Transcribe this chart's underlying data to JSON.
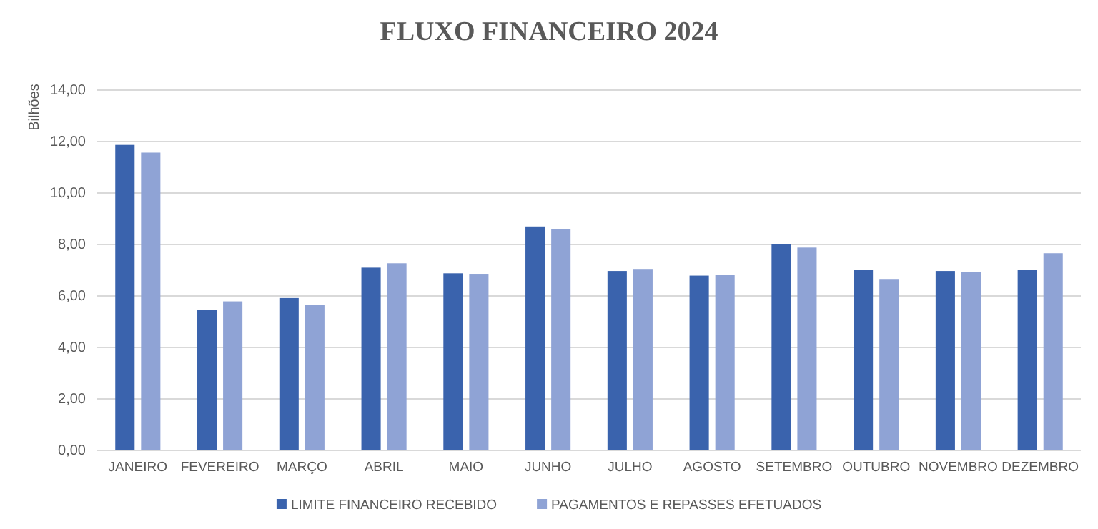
{
  "chart_data": {
    "type": "bar",
    "title": "FLUXO FINANCEIRO 2024",
    "ylabel": "Bilhões",
    "categories": [
      "JANEIRO",
      "FEVEREIRO",
      "MARÇO",
      "ABRIL",
      "MAIO",
      "JUNHO",
      "JULHO",
      "AGOSTO",
      "SETEMBRO",
      "OUTUBRO",
      "NOVEMBRO",
      "DEZEMBRO"
    ],
    "series": [
      {
        "name": "LIMITE FINANCEIRO RECEBIDO",
        "color": "#3a63ad",
        "values": [
          11.87,
          5.47,
          5.92,
          7.1,
          6.88,
          8.7,
          6.97,
          6.79,
          8.01,
          7.01,
          6.97,
          7.01
        ]
      },
      {
        "name": "PAGAMENTOS E REPASSES EFETUADOS",
        "color": "#8fa3d5",
        "values": [
          11.57,
          5.79,
          5.64,
          7.27,
          6.86,
          8.59,
          7.05,
          6.82,
          7.88,
          6.66,
          6.92,
          7.66
        ]
      }
    ],
    "ylim": [
      0,
      14
    ],
    "yticks": [
      {
        "value": 0,
        "label": "0,00"
      },
      {
        "value": 2,
        "label": "2,00"
      },
      {
        "value": 4,
        "label": "4,00"
      },
      {
        "value": 6,
        "label": "6,00"
      },
      {
        "value": 8,
        "label": "8,00"
      },
      {
        "value": 10,
        "label": "10,00"
      },
      {
        "value": 12,
        "label": "12,00"
      },
      {
        "value": 14,
        "label": "14,00"
      }
    ],
    "grid": "y",
    "legend": "bottom"
  }
}
